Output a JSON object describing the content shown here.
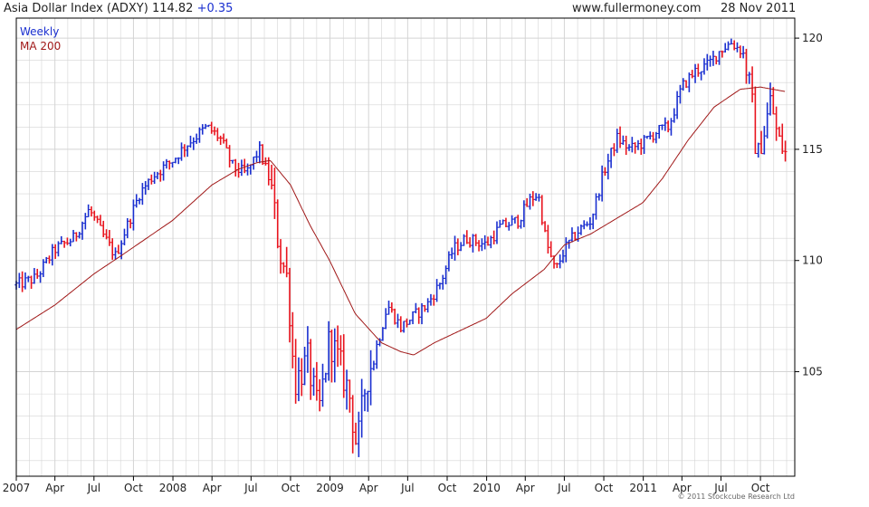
{
  "header": {
    "title": "Asia Dollar Index (ADXY)",
    "last": "114.82",
    "change": "+0.35",
    "site": "www.fullermoney.com",
    "date": "28 Nov 2011"
  },
  "copyright": "© 2011 Stockcube Research Ltd",
  "colors": {
    "up": "#1a2fd0",
    "down": "#e8141e",
    "ma": "#a01818",
    "grid": "#d4d4d4",
    "axis": "#000000"
  },
  "chart_data": {
    "type": "bar",
    "title": "Asia Dollar Index (ADXY)",
    "frequency": "Weekly",
    "legend": [
      "Weekly",
      "MA 200"
    ],
    "legend_position": "top-left",
    "x_tick_labels": [
      "2007",
      "Apr",
      "Jul",
      "Oct",
      "2008",
      "Apr",
      "Jul",
      "Oct",
      "2009",
      "Apr",
      "Jul",
      "Oct",
      "2010",
      "Apr",
      "Jul",
      "Oct",
      "2011",
      "Apr",
      "Jul",
      "Oct"
    ],
    "y_ticks": [
      105,
      110,
      115,
      120
    ],
    "y_axis_side": "right",
    "ylim": [
      100.3,
      120.9
    ],
    "grid": true,
    "price_path": [
      [
        "2007-01-01",
        108.9
      ],
      [
        "2007-02-15",
        109.2
      ],
      [
        "2007-04-01",
        110.5
      ],
      [
        "2007-05-15",
        111.0
      ],
      [
        "2007-06-20",
        112.3
      ],
      [
        "2007-07-20",
        111.2
      ],
      [
        "2007-08-20",
        110.2
      ],
      [
        "2007-09-15",
        111.5
      ],
      [
        "2007-10-15",
        113.0
      ],
      [
        "2007-11-15",
        113.8
      ],
      [
        "2007-12-31",
        114.5
      ],
      [
        "2008-02-01",
        115.2
      ],
      [
        "2008-03-20",
        116.0
      ],
      [
        "2008-04-20",
        115.5
      ],
      [
        "2008-05-20",
        114.2
      ],
      [
        "2008-06-20",
        113.9
      ],
      [
        "2008-07-20",
        115.0
      ],
      [
        "2008-08-15",
        113.5
      ],
      [
        "2008-09-05",
        110.5
      ],
      [
        "2008-09-25",
        109.0
      ],
      [
        "2008-10-10",
        104.5
      ],
      [
        "2008-11-10",
        105.5
      ],
      [
        "2008-12-05",
        103.0
      ],
      [
        "2008-12-31",
        106.5
      ],
      [
        "2009-01-20",
        105.5
      ],
      [
        "2009-02-15",
        104.0
      ],
      [
        "2009-03-05",
        101.5
      ],
      [
        "2009-03-25",
        104.5
      ],
      [
        "2009-04-25",
        106.5
      ],
      [
        "2009-05-15",
        108.0
      ],
      [
        "2009-06-15",
        107.0
      ],
      [
        "2009-07-15",
        107.5
      ],
      [
        "2009-08-15",
        108.0
      ],
      [
        "2009-09-15",
        109.0
      ],
      [
        "2009-10-15",
        110.5
      ],
      [
        "2009-11-15",
        111.0
      ],
      [
        "2009-12-31",
        110.7
      ],
      [
        "2010-02-01",
        111.5
      ],
      [
        "2010-03-15",
        111.8
      ],
      [
        "2010-04-15",
        112.8
      ],
      [
        "2010-05-01",
        113.0
      ],
      [
        "2010-05-20",
        110.8
      ],
      [
        "2010-06-10",
        109.5
      ],
      [
        "2010-07-01",
        110.5
      ],
      [
        "2010-08-01",
        111.3
      ],
      [
        "2010-09-01",
        111.8
      ],
      [
        "2010-10-01",
        114.0
      ],
      [
        "2010-11-01",
        115.5
      ],
      [
        "2010-12-01",
        115.0
      ],
      [
        "2011-01-01",
        115.3
      ],
      [
        "2011-02-01",
        115.8
      ],
      [
        "2011-03-01",
        116.0
      ],
      [
        "2011-04-01",
        117.8
      ],
      [
        "2011-05-01",
        118.5
      ],
      [
        "2011-06-01",
        118.8
      ],
      [
        "2011-07-01",
        119.5
      ],
      [
        "2011-07-25",
        119.8
      ],
      [
        "2011-08-20",
        119.4
      ],
      [
        "2011-09-10",
        117.5
      ],
      [
        "2011-09-22",
        114.5
      ],
      [
        "2011-10-10",
        115.8
      ],
      [
        "2011-10-25",
        117.3
      ],
      [
        "2011-11-10",
        115.5
      ],
      [
        "2011-11-28",
        114.82
      ]
    ],
    "ma200_path": [
      [
        "2007-01-01",
        106.9
      ],
      [
        "2007-04-01",
        108.0
      ],
      [
        "2007-07-01",
        109.4
      ],
      [
        "2007-09-01",
        110.2
      ],
      [
        "2007-12-31",
        111.8
      ],
      [
        "2008-04-01",
        113.4
      ],
      [
        "2008-06-01",
        114.1
      ],
      [
        "2008-07-15",
        114.4
      ],
      [
        "2008-08-15",
        114.5
      ],
      [
        "2008-10-01",
        113.4
      ],
      [
        "2008-11-15",
        111.6
      ],
      [
        "2008-12-31",
        110.0
      ],
      [
        "2009-03-01",
        107.6
      ],
      [
        "2009-05-01",
        106.3
      ],
      [
        "2009-06-15",
        105.9
      ],
      [
        "2009-07-15",
        105.75
      ],
      [
        "2009-09-01",
        106.3
      ],
      [
        "2009-12-31",
        107.4
      ],
      [
        "2010-03-01",
        108.5
      ],
      [
        "2010-05-15",
        109.6
      ],
      [
        "2010-07-01",
        110.7
      ],
      [
        "2010-09-01",
        111.2
      ],
      [
        "2010-12-31",
        112.6
      ],
      [
        "2011-02-15",
        113.7
      ],
      [
        "2011-04-15",
        115.4
      ],
      [
        "2011-06-15",
        116.9
      ],
      [
        "2011-08-15",
        117.7
      ],
      [
        "2011-10-01",
        117.8
      ],
      [
        "2011-11-28",
        117.6
      ]
    ]
  }
}
